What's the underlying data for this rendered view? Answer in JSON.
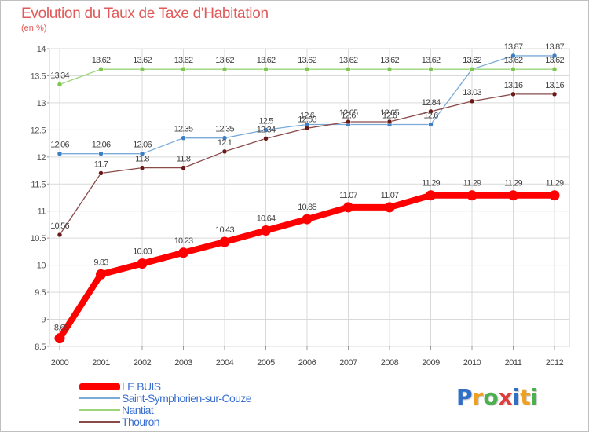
{
  "title": "Evolution du Taux de Taxe d'Habitation",
  "subtitle": "(en %)",
  "logo": {
    "text": "Proxiti",
    "letters": [
      {
        "ch": "P",
        "color": "#2f6fc8"
      },
      {
        "ch": "r",
        "color": "#f0a020"
      },
      {
        "ch": "o",
        "color": "#4caf50"
      },
      {
        "ch": "x",
        "color": "#e23b3b"
      },
      {
        "ch": "i",
        "color": "#2f6fc8"
      },
      {
        "ch": "t",
        "color": "#f0a020"
      },
      {
        "ch": "i",
        "color": "#4caf50"
      }
    ]
  },
  "chart_data": {
    "type": "line",
    "title": "Evolution du Taux de Taxe d'Habitation",
    "subtitle": "(en %)",
    "xlabel": "",
    "ylabel": "",
    "x": [
      "2000",
      "2001",
      "2002",
      "2003",
      "2004",
      "2005",
      "2006",
      "2007",
      "2008",
      "2009",
      "2010",
      "2011",
      "2012"
    ],
    "ylim": [
      8.5,
      14
    ],
    "yticks": [
      "8.5",
      "9",
      "9.5",
      "10",
      "10.5",
      "11",
      "11.5",
      "12",
      "12.5",
      "13",
      "13.5",
      "14"
    ],
    "grid": true,
    "legend_position": "bottom-left",
    "series": [
      {
        "name": "LE BUIS",
        "color": "#ff0000",
        "values": [
          8.65,
          9.83,
          10.03,
          10.23,
          10.43,
          10.64,
          10.85,
          11.07,
          11.07,
          11.29,
          11.29,
          11.29,
          11.29
        ],
        "labels": [
          "8.65",
          "9.83",
          "10.03",
          "10.23",
          "10.43",
          "10.64",
          "10.85",
          "11.07",
          "11.07",
          "11.29",
          "11.29",
          "11.29",
          "11.29"
        ]
      },
      {
        "name": "Saint-Symphorien-sur-Couze",
        "color": "#7aaad8",
        "marker": "#3d7fc4",
        "values": [
          12.06,
          12.06,
          12.06,
          12.35,
          12.35,
          12.5,
          12.6,
          12.6,
          12.6,
          12.6,
          13.62,
          13.87,
          13.87
        ],
        "labels": [
          "12.06",
          "12.06",
          "12.06",
          "12.35",
          "12.35",
          "12.5",
          "12.6",
          "12.6",
          "12.6",
          "12.6",
          "13.62",
          "13.87",
          "13.87"
        ]
      },
      {
        "name": "Nantiat",
        "color": "#9ad57a",
        "marker": "#7cc84e",
        "values": [
          13.34,
          13.62,
          13.62,
          13.62,
          13.62,
          13.62,
          13.62,
          13.62,
          13.62,
          13.62,
          13.62,
          13.62,
          13.62
        ],
        "labels": [
          "13.34",
          "13.62",
          "13.62",
          "13.62",
          "13.62",
          "13.62",
          "13.62",
          "13.62",
          "13.62",
          "13.62",
          "13.62",
          "13.62",
          "13.62"
        ]
      },
      {
        "name": "Thouron",
        "color": "#8a4a4a",
        "marker": "#6b1a1a",
        "values": [
          10.56,
          11.7,
          11.8,
          11.8,
          12.1,
          12.34,
          12.53,
          12.65,
          12.65,
          12.84,
          13.03,
          13.16,
          13.16
        ],
        "labels": [
          "10.56",
          "11.7",
          "11.8",
          "11.8",
          "12.1",
          "12.34",
          "12.53",
          "12.65",
          "12.65",
          "12.84",
          "13.03",
          "13.16",
          "13.16"
        ]
      }
    ]
  }
}
